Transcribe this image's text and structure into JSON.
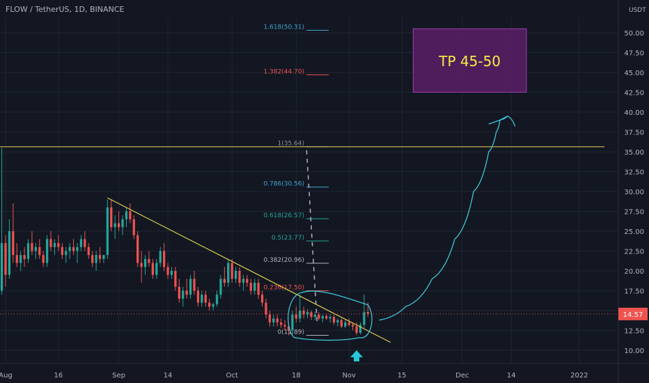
{
  "header": {
    "title": "FLOW / TetherUS, 1D, BINANCE",
    "unit": "USDT"
  },
  "colors": {
    "background": "#131722",
    "grid": "#1f2433",
    "candle_up": "#26a69a",
    "candle_down": "#ef5350",
    "trendline": "#e2d14f",
    "resistance": "#e2d14f",
    "projection": "#3ec6d8",
    "tp_box_fill": "#5a1f66",
    "tp_box_text": "#f5ee45",
    "price_tag": "#ef5350"
  },
  "chart_data": {
    "type": "candlestick",
    "ylim": [
      9,
      53
    ],
    "y_ticks": [
      10,
      12.5,
      15,
      17.5,
      20,
      22.5,
      25,
      27.5,
      30,
      32.5,
      35,
      37.5,
      40,
      42.5,
      45,
      47.5,
      50
    ],
    "y_tick_labels": [
      "10.00",
      "12.50",
      "15.00",
      "17.50",
      "20.00",
      "22.50",
      "25.00",
      "27.50",
      "30.00",
      "32.50",
      "35.00",
      "37.50",
      "40.00",
      "42.50",
      "45.00",
      "47.50",
      "50.00"
    ],
    "x_ticks": [
      {
        "label": "Aug",
        "day": 0
      },
      {
        "label": "16",
        "day": 14
      },
      {
        "label": "Sep",
        "day": 30
      },
      {
        "label": "14",
        "day": 43
      },
      {
        "label": "Oct",
        "day": 60
      },
      {
        "label": "18",
        "day": 77
      },
      {
        "label": "Nov",
        "day": 91
      },
      {
        "label": "15",
        "day": 105
      },
      {
        "label": "Dec",
        "day": 121
      },
      {
        "label": "14",
        "day": 134
      },
      {
        "label": "2022",
        "day": 152
      }
    ],
    "current_price": 14.57,
    "current_price_label": "14.57",
    "candles": [
      [
        -1,
        17.5,
        35.5,
        17.0,
        23.5
      ],
      [
        0,
        23.5,
        24.5,
        18.0,
        19.5
      ],
      [
        1,
        19.5,
        26.5,
        19.0,
        25.0
      ],
      [
        2,
        25.0,
        28.5,
        21.0,
        22.0
      ],
      [
        3,
        22.0,
        23.5,
        20.5,
        21.0
      ],
      [
        4,
        21.0,
        22.5,
        20.0,
        22.0
      ],
      [
        5,
        22.0,
        23.0,
        20.5,
        21.5
      ],
      [
        6,
        21.5,
        24.0,
        21.0,
        23.5
      ],
      [
        7,
        23.5,
        25.0,
        22.0,
        22.5
      ],
      [
        8,
        22.5,
        23.5,
        21.5,
        23.0
      ],
      [
        9,
        23.0,
        24.0,
        21.5,
        22.0
      ],
      [
        10,
        22.0,
        22.5,
        20.5,
        21.0
      ],
      [
        11,
        21.0,
        24.5,
        20.5,
        24.0
      ],
      [
        12,
        24.0,
        25.0,
        22.5,
        23.0
      ],
      [
        13,
        23.0,
        24.0,
        22.0,
        23.5
      ],
      [
        14,
        23.5,
        24.5,
        22.5,
        23.0
      ],
      [
        15,
        23.0,
        23.5,
        21.5,
        22.0
      ],
      [
        16,
        22.0,
        23.0,
        21.0,
        22.5
      ],
      [
        17,
        22.5,
        23.5,
        21.5,
        23.0
      ],
      [
        18,
        23.0,
        24.0,
        22.0,
        22.5
      ],
      [
        19,
        22.5,
        23.5,
        21.0,
        23.0
      ],
      [
        20,
        23.0,
        24.5,
        22.5,
        24.0
      ],
      [
        21,
        24.0,
        25.0,
        22.5,
        23.0
      ],
      [
        22,
        23.0,
        23.5,
        21.5,
        22.0
      ],
      [
        23,
        22.0,
        22.5,
        20.5,
        21.0
      ],
      [
        24,
        21.0,
        22.5,
        20.0,
        22.0
      ],
      [
        25,
        22.0,
        23.0,
        21.0,
        21.5
      ],
      [
        26,
        21.5,
        22.0,
        21.0,
        22.0
      ],
      [
        27,
        22.0,
        29.0,
        21.5,
        28.0
      ],
      [
        28,
        28.0,
        29.0,
        25.0,
        25.5
      ],
      [
        29,
        25.5,
        27.0,
        24.0,
        26.0
      ],
      [
        30,
        26.0,
        27.5,
        25.0,
        25.5
      ],
      [
        31,
        25.5,
        27.0,
        24.5,
        26.5
      ],
      [
        32,
        26.5,
        28.0,
        25.5,
        27.5
      ],
      [
        33,
        27.5,
        28.5,
        26.0,
        26.5
      ],
      [
        34,
        26.5,
        27.0,
        24.0,
        24.5
      ],
      [
        35,
        24.5,
        25.0,
        20.5,
        21.0
      ],
      [
        36,
        21.0,
        22.5,
        18.5,
        20.5
      ],
      [
        37,
        20.5,
        22.0,
        19.5,
        21.5
      ],
      [
        38,
        21.5,
        22.5,
        20.5,
        21.0
      ],
      [
        39,
        21.0,
        21.5,
        19.0,
        19.5
      ],
      [
        40,
        19.5,
        21.5,
        19.0,
        21.0
      ],
      [
        41,
        21.0,
        23.0,
        20.5,
        22.5
      ],
      [
        42,
        22.5,
        23.5,
        20.0,
        20.5
      ],
      [
        43,
        20.5,
        21.0,
        19.0,
        19.5
      ],
      [
        44,
        19.5,
        20.5,
        19.0,
        20.0
      ],
      [
        45,
        20.0,
        20.5,
        17.5,
        18.0
      ],
      [
        46,
        18.0,
        19.0,
        16.0,
        16.5
      ],
      [
        47,
        16.5,
        18.0,
        15.5,
        17.5
      ],
      [
        48,
        17.5,
        19.0,
        16.5,
        17.0
      ],
      [
        49,
        17.0,
        19.5,
        16.5,
        19.0
      ],
      [
        50,
        19.0,
        20.0,
        17.0,
        17.5
      ],
      [
        51,
        17.5,
        18.0,
        15.5,
        16.0
      ],
      [
        52,
        16.0,
        17.5,
        15.5,
        17.0
      ],
      [
        53,
        17.0,
        17.5,
        15.5,
        16.0
      ],
      [
        54,
        16.0,
        16.5,
        15.0,
        15.5
      ],
      [
        55,
        15.5,
        16.0,
        15.0,
        15.8
      ],
      [
        56,
        15.8,
        17.5,
        15.5,
        17.0
      ],
      [
        57,
        17.0,
        19.5,
        16.5,
        19.0
      ],
      [
        58,
        19.0,
        20.5,
        18.0,
        18.5
      ],
      [
        59,
        18.5,
        21.5,
        18.0,
        21.0
      ],
      [
        60,
        21.0,
        21.5,
        18.5,
        19.0
      ],
      [
        61,
        19.0,
        20.5,
        18.5,
        20.0
      ],
      [
        62,
        20.0,
        20.5,
        18.0,
        18.5
      ],
      [
        63,
        18.5,
        19.5,
        17.5,
        19.0
      ],
      [
        64,
        19.0,
        19.5,
        18.0,
        18.5
      ],
      [
        65,
        18.5,
        19.0,
        17.0,
        17.5
      ],
      [
        66,
        17.5,
        19.0,
        17.0,
        18.5
      ],
      [
        67,
        18.5,
        19.0,
        16.5,
        17.0
      ],
      [
        68,
        17.0,
        17.5,
        15.5,
        16.0
      ],
      [
        69,
        16.0,
        16.5,
        14.0,
        14.5
      ],
      [
        70,
        14.5,
        15.0,
        13.0,
        13.5
      ],
      [
        71,
        13.5,
        14.5,
        13.0,
        14.0
      ],
      [
        72,
        14.0,
        14.5,
        13.0,
        13.5
      ],
      [
        73,
        13.5,
        14.0,
        12.8,
        13.2
      ],
      [
        74,
        13.2,
        13.8,
        12.5,
        13.0
      ],
      [
        75,
        13.0,
        13.5,
        11.9,
        12.5
      ],
      [
        76,
        12.5,
        15.0,
        12.0,
        14.5
      ],
      [
        77,
        14.5,
        15.5,
        13.5,
        14.0
      ],
      [
        78,
        14.0,
        17.0,
        13.5,
        15.0
      ],
      [
        79,
        15.0,
        15.5,
        14.0,
        14.5
      ],
      [
        80,
        14.5,
        15.2,
        14.0,
        14.8
      ],
      [
        81,
        14.8,
        15.0,
        13.8,
        14.2
      ],
      [
        82,
        14.2,
        14.8,
        13.8,
        14.5
      ],
      [
        83,
        14.5,
        14.8,
        13.8,
        14.0
      ],
      [
        84,
        14.0,
        14.5,
        13.5,
        14.3
      ],
      [
        85,
        14.3,
        14.6,
        13.8,
        14.0
      ],
      [
        86,
        14.0,
        14.5,
        13.5,
        14.2
      ],
      [
        87,
        14.2,
        14.5,
        13.2,
        13.5
      ],
      [
        88,
        13.5,
        14.0,
        13.0,
        13.8
      ],
      [
        89,
        13.8,
        14.0,
        12.8,
        13.0
      ],
      [
        90,
        13.0,
        13.8,
        12.8,
        13.5
      ],
      [
        91,
        13.5,
        14.0,
        13.0,
        13.2
      ],
      [
        92,
        13.2,
        13.5,
        12.5,
        13.0
      ],
      [
        93,
        13.0,
        13.5,
        11.9,
        12.2
      ],
      [
        94,
        12.2,
        13.5,
        12.0,
        13.2
      ],
      [
        95,
        13.2,
        17.0,
        12.8,
        14.8
      ],
      [
        96,
        14.8,
        16.0,
        14.2,
        14.57
      ]
    ],
    "fib_levels": [
      {
        "label": "1.618(50.31)",
        "value": 50.31,
        "color": "#3ea6c9"
      },
      {
        "label": "1.382(44.70)",
        "value": 44.7,
        "color": "#ef5350"
      },
      {
        "label": "1(35.64)",
        "value": 35.64,
        "color": "#8a8f99"
      },
      {
        "label": "0.786(30.56)",
        "value": 30.56,
        "color": "#3ea6c9"
      },
      {
        "label": "0.618(26.57)",
        "value": 26.57,
        "color": "#26a69a"
      },
      {
        "label": "0.5(23.77)",
        "value": 23.77,
        "color": "#26a69a"
      },
      {
        "label": "0.382(20.96)",
        "value": 20.96,
        "color": "#b2b5be"
      },
      {
        "label": "0.236(17.50)",
        "value": 17.5,
        "color": "#ef5350"
      },
      {
        "label": "0(11.89)",
        "value": 11.89,
        "color": "#b2b5be"
      }
    ],
    "resistance_level": 35.64,
    "trendline": {
      "start": [
        27,
        29.2
      ],
      "end": [
        102,
        11.0
      ]
    },
    "tp_zone": {
      "low": 42.5,
      "high": 50.5,
      "day_start": 108,
      "day_end": 138,
      "label": "TP 45-50"
    },
    "projection_path": [
      [
        99,
        13.8
      ],
      [
        106,
        15.5
      ],
      [
        113,
        19.0
      ],
      [
        119,
        24.0
      ],
      [
        124,
        30.0
      ],
      [
        128,
        35.0
      ],
      [
        130,
        37.5
      ],
      [
        131,
        39.0
      ],
      [
        133,
        39.5
      ],
      [
        135,
        38.2
      ]
    ],
    "projection_arrowhead": [
      [
        128,
        38.5
      ],
      [
        131,
        39.0
      ],
      [
        133,
        39.5
      ]
    ],
    "arrow_day": 93,
    "wedge_days": [
      75,
      96
    ]
  }
}
